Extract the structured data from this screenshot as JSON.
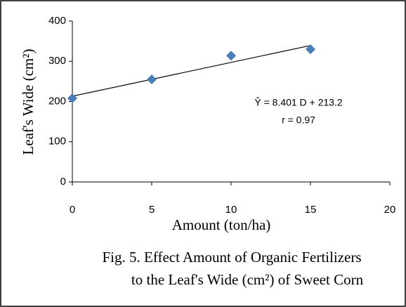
{
  "chart_data": {
    "type": "scatter",
    "y_label": "Leaf's Wide (cm²)",
    "x_label": "Amount (ton/ha)",
    "caption": [
      "Fig. 5. Effect Amount of Organic Fertilizers",
      "to the Leaf's Wide (cm²) of Sweet Corn"
    ],
    "annotations": [
      "Ŷ = 8.401  D + 213.2",
      "r = 0.97"
    ],
    "x": [
      0,
      5,
      10,
      15
    ],
    "values": [
      208,
      255,
      314,
      330
    ],
    "color": "#4a7ebb",
    "trendline": {
      "slope": 8.401,
      "intercept": 213.2
    },
    "xlim": [
      0,
      20
    ],
    "xticks": [
      0,
      5,
      10,
      15,
      20
    ],
    "ylim": [
      0,
      400
    ],
    "yticks": [
      0,
      100,
      200,
      300,
      400
    ],
    "grid": false
  }
}
